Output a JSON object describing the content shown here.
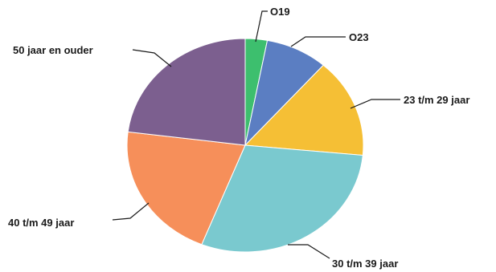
{
  "chart_data": {
    "type": "pie",
    "title": "",
    "slices": [
      {
        "label": "O19",
        "value": 3,
        "color": "#3dbf6e"
      },
      {
        "label": "O23",
        "value": 8.5,
        "color": "#5b7ec2"
      },
      {
        "label": "23 t/m 29 jaar",
        "value": 15,
        "color": "#f5bf35"
      },
      {
        "label": "30 t/m 39 jaar",
        "value": 29.5,
        "color": "#7ac9cf"
      },
      {
        "label": "40 t/m 49 jaar",
        "value": 21,
        "color": "#f68f5a"
      },
      {
        "label": "50 jaar en ouder",
        "value": 23,
        "color": "#7c5f8f"
      }
    ]
  }
}
